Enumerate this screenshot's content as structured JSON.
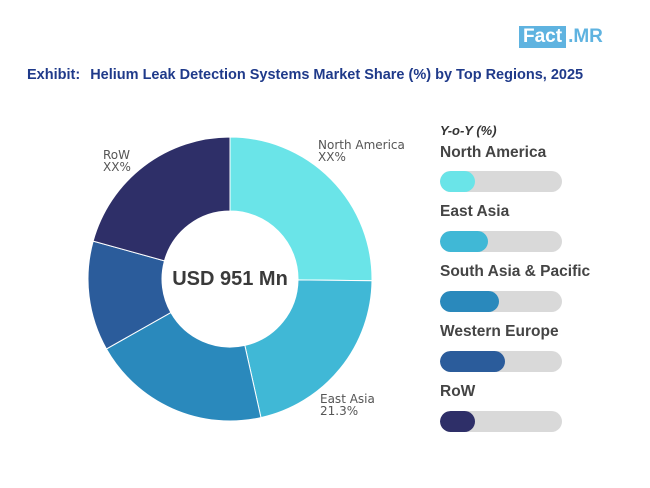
{
  "logo": {
    "part1": "Fact",
    "part2": ".MR"
  },
  "title": {
    "prefix": "Exhibit:",
    "text": "Helium Leak Detection Systems Market Share (%) by Top Regions, 2025"
  },
  "center_label": "USD 951 Mn",
  "yoy_label": "Y-o-Y (%)",
  "colors": {
    "north_america": "#6ae4e8",
    "east_asia": "#40b8d6",
    "south_asia_pacific": "#2a89bc",
    "western_europe": "#2b5c9b",
    "row": "#2e2f68",
    "track": "#d9d9d9"
  },
  "chart_data": [
    {
      "type": "pie",
      "variant": "donut",
      "center_text": "USD 951 Mn",
      "slices": [
        {
          "name": "North America",
          "value": 25.2,
          "label": "XX%",
          "color": "#6ae4e8"
        },
        {
          "name": "East Asia",
          "value": 21.3,
          "label": "21.3%",
          "color": "#40b8d6"
        },
        {
          "name": "South Asia & Pacific",
          "value": 20.3,
          "color": "#2a89bc"
        },
        {
          "name": "Western Europe",
          "value": 12.5,
          "color": "#2b5c9b"
        },
        {
          "name": "RoW",
          "value": 20.7,
          "label": "XX%",
          "color": "#2e2f68"
        }
      ]
    },
    {
      "type": "bar",
      "orientation": "horizontal",
      "title": "Y-o-Y (%)",
      "categories": [
        "North America",
        "East Asia",
        "South Asia & Pacific",
        "Western Europe",
        "RoW"
      ],
      "values": [
        0.29,
        0.39,
        0.48,
        0.53,
        0.29
      ],
      "value_scale": "fraction of track filled"
    }
  ]
}
